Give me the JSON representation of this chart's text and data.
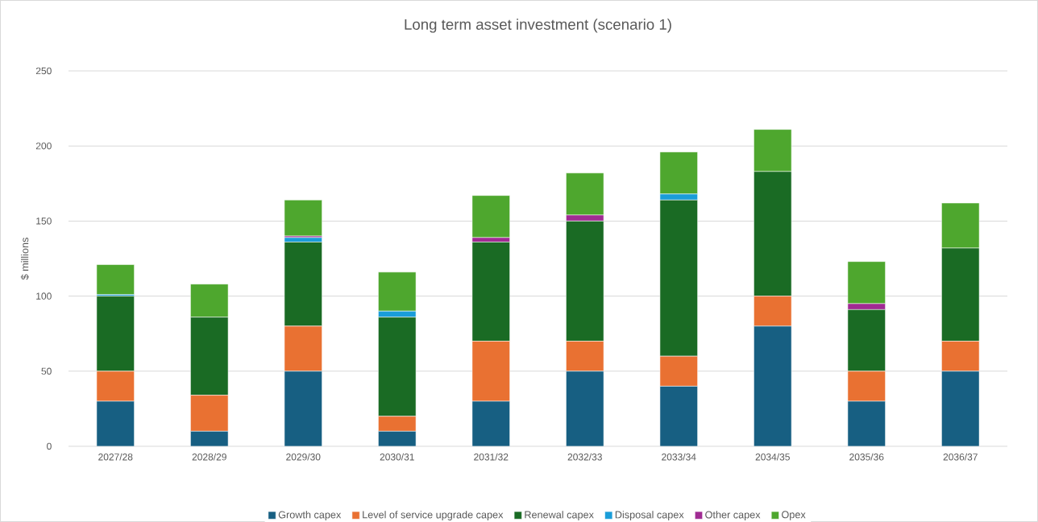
{
  "chart_data": {
    "type": "bar",
    "title": "Long term asset investment (scenario 1)",
    "ylabel": "$ millions",
    "categories": [
      "2027/28",
      "2028/29",
      "2029/30",
      "2030/31",
      "2031/32",
      "2032/33",
      "2033/34",
      "2034/35",
      "2035/36",
      "2036/37"
    ],
    "stacked": true,
    "series": [
      {
        "name": "Growth capex",
        "color": "#175f82",
        "values": [
          30,
          10,
          50,
          10,
          30,
          50,
          40,
          80,
          30,
          50
        ]
      },
      {
        "name": "Level of service upgrade capex",
        "color": "#e97132",
        "values": [
          20,
          24,
          30,
          10,
          40,
          20,
          20,
          20,
          20,
          20
        ]
      },
      {
        "name": "Renewal capex",
        "color": "#1a6b24",
        "values": [
          50,
          52,
          56,
          66,
          66,
          80,
          104,
          83,
          41,
          62
        ]
      },
      {
        "name": "Disposal capex",
        "color": "#1a9dd9",
        "values": [
          1,
          0,
          3,
          4,
          0,
          0,
          4,
          0,
          0,
          0
        ]
      },
      {
        "name": "Other capex",
        "color": "#a02b93",
        "values": [
          0,
          0,
          1,
          0,
          3,
          4,
          0,
          0,
          4,
          0
        ]
      },
      {
        "name": "Opex",
        "color": "#4ea72e",
        "values": [
          20,
          22,
          24,
          26,
          28,
          28,
          28,
          28,
          28,
          30
        ]
      }
    ],
    "ylim": [
      0,
      250
    ],
    "yticks": [
      0,
      50,
      100,
      150,
      200,
      250
    ],
    "grid": "y",
    "legend": "bottom"
  }
}
